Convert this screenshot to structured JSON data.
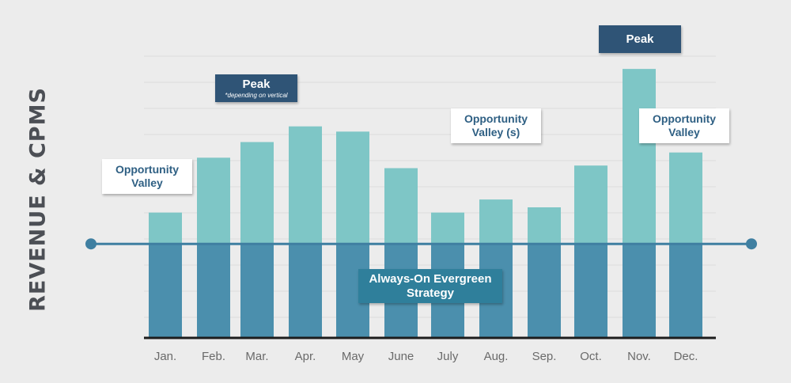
{
  "chart_data": {
    "type": "bar",
    "title": "",
    "ylabel": "REVENUE & CPMS",
    "xlabel": "",
    "categories": [
      "Jan.",
      "Feb.",
      "Mar.",
      "Apr.",
      "May",
      "June",
      "July",
      "Aug.",
      "Sep.",
      "Oct.",
      "Nov.",
      "Dec."
    ],
    "values": [
      48,
      69,
      75,
      81,
      79,
      65,
      48,
      53,
      50,
      66,
      103,
      71
    ],
    "baseline": 36,
    "ylim": [
      0,
      110
    ],
    "grid": true,
    "colors": {
      "bar_top": "#7ec6c6",
      "bar_bottom": "#4b8fad",
      "baseline_line": "#3f7fa1",
      "axis": "#1d1d1d",
      "grid": "#dcdcdc",
      "tick_label": "#6a6a6a"
    }
  },
  "annotations": {
    "opportunity_valley_left": "Opportunity Valley",
    "peak_left": {
      "main": "Peak",
      "sub": "*depending on vertical"
    },
    "opportunity_valleys_mid": "Opportunity Valley (s)",
    "peak_right": "Peak",
    "opportunity_valley_right": "Opportunity Valley",
    "evergreen": "Always-On Evergreen Strategy"
  }
}
